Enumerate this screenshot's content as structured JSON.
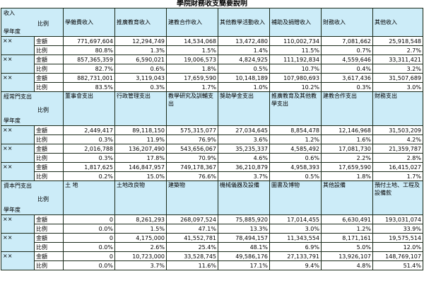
{
  "title": "學院財務收支簡要說明",
  "corner": {
    "year": "學年度",
    "ratio": "比例",
    "revenue": "收入",
    "op_exp": "經常門支出",
    "cap_exp": "資本門支出"
  },
  "row_labels": {
    "amount": "金額",
    "ratio": "比例"
  },
  "sections": [
    {
      "headers": [
        "學雜費收入",
        "推廣教育收入",
        "建教合作收入",
        "其他教學活動收入",
        "補助及捐贈收入",
        "財務收入",
        "其他收入"
      ],
      "groups": [
        {
          "year": "××",
          "amount": [
            "771,697,604",
            "12,294,749",
            "14,534,068",
            "13,472,480",
            "110,002,734",
            "7,081,662",
            "25,918,548"
          ],
          "ratio": [
            "80.8%",
            "1.3%",
            "1.5%",
            "1.4%",
            "11.5%",
            "0.7%",
            "2.7%"
          ]
        },
        {
          "year": "××",
          "amount": [
            "857,365,359",
            "6,590,021",
            "19,006,573",
            "4,824,925",
            "111,192,834",
            "4,559,646",
            "33,311,421"
          ],
          "ratio": [
            "82.7%",
            "0.6%",
            "1.8%",
            "0.5%",
            "10.7%",
            "0.4%",
            "3.2%"
          ]
        },
        {
          "year": "××",
          "amount": [
            "882,731,001",
            "3,119,043",
            "17,659,590",
            "10,148,189",
            "107,980,693",
            "3,617,436",
            "31,507,689"
          ],
          "ratio": [
            "83.5%",
            "0.3%",
            "1.7%",
            "1.0%",
            "10.2%",
            "0.3%",
            "3.0%"
          ]
        }
      ]
    },
    {
      "headers": [
        "董事會支出",
        "行政管理支出",
        "教學研究及訓輔支出",
        "獎助學金支出",
        "推廣教育及其他教學支出",
        "建教合作支出",
        "財務支出"
      ],
      "groups": [
        {
          "year": "××",
          "amount": [
            "2,449,417",
            "89,118,150",
            "575,315,077",
            "27,034,645",
            "8,854,478",
            "12,146,968",
            "31,503,209"
          ],
          "ratio": [
            "0.3%",
            "11.9%",
            "76.9%",
            "3.6%",
            "1.2%",
            "1.6%",
            "4.2%"
          ]
        },
        {
          "year": "××",
          "amount": [
            "2,016,788",
            "136,207,490",
            "543,656,067",
            "35,235,337",
            "4,585,492",
            "17,081,730",
            "21,359,787"
          ],
          "ratio": [
            "0.3%",
            "17.8%",
            "70.9%",
            "4.6%",
            "0.6%",
            "2.2%",
            "2.8%"
          ]
        },
        {
          "year": "××",
          "amount": [
            "1,817,625",
            "146,847,957",
            "749,178,367",
            "36,210,879",
            "4,958,393",
            "17,659,590",
            "16,415,027"
          ],
          "ratio": [
            "0.2%",
            "15.0%",
            "76.6%",
            "3.7%",
            "0.5%",
            "1.8%",
            "1.7%"
          ]
        }
      ]
    },
    {
      "headers": [
        "土 地",
        "土地改良物",
        "建築物",
        "機械儀器及設備",
        "圖書及博物",
        "其他設備",
        "預付土地、工程及設備款"
      ],
      "groups": [
        {
          "year": "××",
          "amount": [
            "0",
            "8,261,293",
            "268,097,524",
            "75,885,920",
            "17,014,455",
            "6,630,491",
            "193,031,074"
          ],
          "ratio": [
            "0.0%",
            "1.5%",
            "47.1%",
            "13.3%",
            "3.0%",
            "1.2%",
            "33.9%"
          ]
        },
        {
          "year": "××",
          "amount": [
            "0",
            "4,175,000",
            "41,552,781",
            "78,494,157",
            "11,343,554",
            "8,171,161",
            "19,575,514"
          ],
          "ratio": [
            "0.0%",
            "2.6%",
            "25.4%",
            "48.1%",
            "6.9%",
            "5.0%",
            "12.0%"
          ]
        },
        {
          "year": "××",
          "amount": [
            "0",
            "10,723,000",
            "33,528,745",
            "49,586,176",
            "27,133,791",
            "13,926,107",
            "148,769,107"
          ],
          "ratio": [
            "0.0%",
            "3.7%",
            "11.6%",
            "17.1%",
            "9.4%",
            "4.8%",
            "51.4%"
          ]
        }
      ]
    }
  ]
}
